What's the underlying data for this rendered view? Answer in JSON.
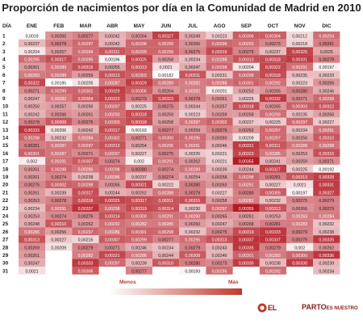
{
  "title": "Proporción de nacimientos por día en la Comunidad de Madrid en 2010",
  "legend": {
    "low_label": "Menos",
    "high_label": "Más",
    "low_color": "#ffffff",
    "high_color": "#c0392b"
  },
  "logo": {
    "text_pre": "EL",
    "text_mid": "PARTO",
    "text_post": "ES NUESTRO"
  },
  "chart_data": {
    "type": "heatmap",
    "row_header": "DÍA",
    "columns": [
      "ENE",
      "FEB",
      "MAR",
      "ABR",
      "MAY",
      "JUN",
      "JUL",
      "AGO",
      "SEP",
      "OCT",
      "NOV",
      "DIC"
    ],
    "rows": [
      "1",
      "2",
      "3",
      "4",
      "5",
      "6",
      "7",
      "8",
      "9",
      "10",
      "11",
      "12",
      "13",
      "14",
      "15",
      "16",
      "17",
      "18",
      "19",
      "20",
      "21",
      "22",
      "23",
      "24",
      "25",
      "26",
      "27",
      "28",
      "29",
      "30",
      "31"
    ],
    "color_scale": {
      "min": 0.00185,
      "max": 0.0036
    },
    "values": [
      [
        "0,0019",
        "0,00265",
        "0,00277",
        "0,00242",
        "0,00264",
        "0,00327",
        "0,00249",
        "0,00223",
        "0,00306",
        "0,00304",
        "0,00212",
        "0,00294"
      ],
      [
        "0,00237",
        "0,00278",
        "0,00297",
        "0,00242",
        "0,00298",
        "0,00299",
        "0,00266",
        "0,00296",
        "0,00293",
        "0,00273",
        "0,00218",
        "0,00281"
      ],
      [
        "0,00204",
        "0,00257",
        "0,00294",
        "0,00311",
        "0,00299",
        "0,00299",
        "0,00275",
        "0,00319",
        "0,00275",
        "0,00237",
        "0,00325",
        "0,0025"
      ],
      [
        "0,00295",
        "0,00317",
        "0,00295",
        "0,00196",
        "0,00325",
        "0,00258",
        "0,00234",
        "0,00288",
        "0,00313",
        "0,00318",
        "0,00331",
        "0,00278"
      ],
      [
        "0,00261",
        "0,00289",
        "0,00315",
        "0,00255",
        "0,00313",
        "0,0021",
        "0,00247",
        "0,00298",
        "0,00204",
        "0,00322",
        "0,00291",
        "0,00197"
      ],
      [
        "0,00283",
        "0,00288",
        "0,00259",
        "0,00313",
        "0,00303",
        "0,00182",
        "0,00311",
        "0,00231",
        "0,00298",
        "0,00318",
        "0,00235",
        "0,00233"
      ],
      [
        "0,00322",
        "0,00185",
        "0,00205",
        "0,00287",
        "0,00329",
        "0,00289",
        "0,00282",
        "0,00288",
        "0,00301",
        "0,00292",
        "0,00223",
        "0,00265"
      ],
      [
        "0,00271",
        "0,00299",
        "0,00301",
        "0,00329",
        "0,00306",
        "0,00264",
        "0,00282",
        "0,00201",
        "0,00252",
        "0,00265",
        "0,00280",
        "0,00246"
      ],
      [
        "0,00247",
        "0,00282",
        "0,00304",
        "0,00323",
        "0,00279",
        "0,00323",
        "0,00278",
        "0,00261",
        "0,00225",
        "0,00332",
        "0,00271",
        "0,00298"
      ],
      [
        "0,00250",
        "0,00257",
        "0,00250",
        "0,00297",
        "0,00225",
        "0,00275",
        "0,00244",
        "0,00257",
        "0,00318",
        "0,00265",
        "0,00303",
        "0,00312"
      ],
      [
        "0,00242",
        "0,00266",
        "0,00261",
        "0,00293",
        "0,00318",
        "0,00259",
        "0,00223",
        "0,00259",
        "0,00258",
        "0,00293",
        "0,00235",
        "0,00256"
      ],
      [
        "0,00278",
        "0,00309",
        "0,00275",
        "0,00303",
        "0,00318",
        "0,00258",
        "0,00287",
        "0,00302",
        "0,00227",
        "0,00225",
        "0,00297",
        "0,00227"
      ],
      [
        "0,00333",
        "0,00206",
        "0,00242",
        "0,00317",
        "0,00193",
        "0,00277",
        "0,00259",
        "0,00279",
        "0,00262",
        "0,00297",
        "0,00234",
        "0,00291"
      ],
      [
        "0,00298",
        "0,00232",
        "0,00284",
        "0,00302",
        "0,00271",
        "0,00300",
        "0,00295",
        "0,00260",
        "0,00209",
        "0,00297",
        "0,00256",
        "0,00310"
      ],
      [
        "0,00281",
        "0,00287",
        "0,00297",
        "0,00313",
        "0,00254",
        "0,00295",
        "0,00291",
        "0,00246",
        "0,00331",
        "0,00311",
        "0,00288",
        "0,00288"
      ],
      [
        "0,00301",
        "0,00287",
        "0,00271",
        "0,00297",
        "0,00227",
        "0,00275",
        "0,00226",
        "0,00221",
        "0,00323",
        "0,00285",
        "0,00253",
        "0,00315"
      ],
      [
        "0,002",
        "0,00291",
        "0,00307",
        "0,00274",
        "0,002",
        "0,00291",
        "0,00262",
        "0,00221",
        "0,00355",
        "0,00241",
        "0,00259",
        "0,00271"
      ],
      [
        "0,00261",
        "0,00298",
        "0,00286",
        "0,00298",
        "0,00280",
        "0,00274",
        "0,00289",
        "0,00239",
        "0,00244",
        "0,00327",
        "0,00225",
        "0,00192"
      ],
      [
        "0,00261",
        "0,00274",
        "0,00238",
        "0,00286",
        "0,00237",
        "0,00274",
        "0,00254",
        "0,00258",
        "0,00298",
        "0,00281",
        "0,00313",
        "0,00328"
      ],
      [
        "0,00275",
        "0,00302",
        "0,00298",
        "0,00265",
        "0,00321",
        "0,00222",
        "0,00280",
        "0,00263",
        "0,00291",
        "0,00227",
        "0,0021",
        "0,00331"
      ],
      [
        "0,00261",
        "0,00239",
        "0,00317",
        "0,00244",
        "0,00252",
        "0,00288",
        "0,00279",
        "0,00227",
        "0,00280",
        "0,00305",
        "0,00197",
        "0,00327"
      ],
      [
        "0,00263",
        "0,00278",
        "0,00316",
        "0,00325",
        "0,00317",
        "0,00311",
        "0,00315",
        "0,00258",
        "0,00282",
        "0,00232",
        "0,00275",
        "0,00279"
      ],
      [
        "0,00234",
        "0,00291",
        "0,00337",
        "0,00298",
        "0,00319",
        "0,00314",
        "0,00230",
        "0,00297",
        "0,00355",
        "0,00313",
        "0,00266",
        "0,00279"
      ],
      [
        "0,00253",
        "0,00274",
        "0,00276",
        "0,00314",
        "0,00300",
        "0,00291",
        "0,00290",
        "0,00265",
        "0,00261",
        "0,00253",
        "0,00283",
        "0,00284"
      ],
      [
        "0,00248",
        "0,00310",
        "0,00262",
        "0,00292",
        "0,00282",
        "0,00285",
        "0,00260",
        "0,00247",
        "0,00268",
        "0,00281",
        "0,00283",
        "0,00232"
      ],
      [
        "0,00286",
        "0,00256",
        "0,00297",
        "0,00286",
        "0,00301",
        "0,00298",
        "0,00232",
        "0,00275",
        "0,00319",
        "0,00333",
        "0,00279",
        "0,00238"
      ],
      [
        "0,00313",
        "0,00227",
        "0,00216",
        "0,00307",
        "0,00299",
        "0,00277",
        "0,00295",
        "0,00313",
        "0,00337",
        "0,00337",
        "0,00279",
        "0,00335"
      ],
      [
        "0,00269",
        "0,00209",
        "0,00279",
        "0,00271",
        "0,00246",
        "0,00234",
        "0,00279",
        "0,00243",
        "0,00335",
        "0,00279",
        "0,002",
        "0,00262"
      ],
      [
        "0,00261",
        "",
        "0,00282",
        "0,00321",
        "0,00286",
        "0,00244",
        "0,00308",
        "0,00240",
        "0,00301",
        "0,00283",
        "0,00300",
        "0,00336"
      ],
      [
        "0,00247",
        "",
        "0,00333",
        "0,00297",
        "0,00239",
        "0,00310",
        "0,00280",
        "0,00273",
        "0,00330",
        "0,00238",
        "0,00330",
        "0,00239"
      ],
      [
        "0,0021",
        "",
        "0,00306",
        "",
        "0,00277",
        "",
        "0,00193",
        "0,00295",
        "",
        "0,00292",
        "",
        "0,00234"
      ]
    ]
  }
}
